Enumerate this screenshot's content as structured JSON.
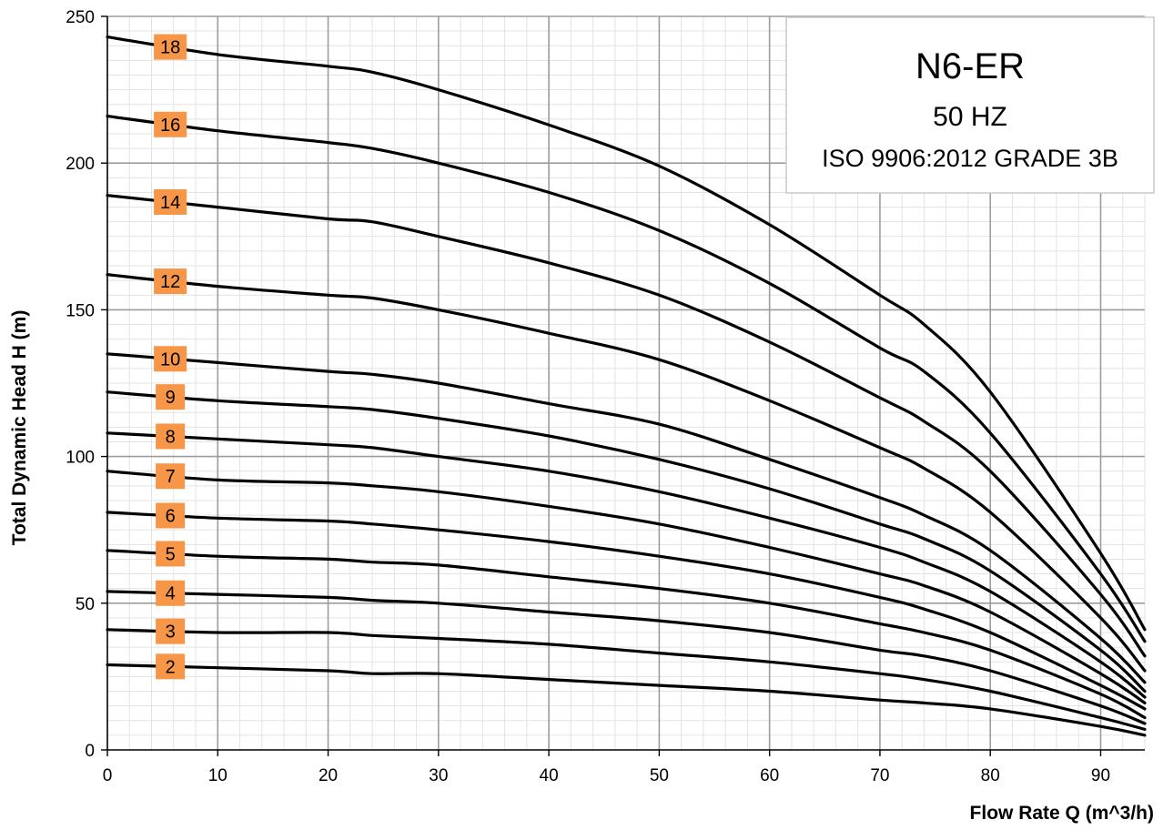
{
  "chart_data": {
    "type": "line",
    "title": "N6-ER",
    "subtitle_lines": [
      "50 HZ",
      "ISO 9906:2012 GRADE 3B"
    ],
    "xlabel": "Flow Rate Q (m^3/h)",
    "ylabel": "Total Dynamic Head  H (m)",
    "xlim": [
      0,
      94
    ],
    "ylim": [
      0,
      250
    ],
    "x_ticks": [
      "0",
      "10",
      "20",
      "30",
      "40",
      "50",
      "60",
      "70",
      "80",
      "90"
    ],
    "y_ticks": [
      "0",
      "50",
      "100",
      "150",
      "200",
      "250"
    ],
    "grid": true,
    "info_box_placement": "top-right",
    "label_color": "#F79646",
    "line_color": "#000000",
    "x": [
      0,
      10,
      20,
      24,
      30,
      40,
      50,
      60,
      70,
      74,
      80,
      90,
      94
    ],
    "series": [
      {
        "label": "18",
        "values": [
          243,
          237,
          233,
          231,
          225,
          213,
          199,
          179,
          155,
          145,
          122,
          67,
          41
        ]
      },
      {
        "label": "16",
        "values": [
          216,
          211,
          207,
          205,
          200,
          190,
          177,
          159,
          137,
          129,
          108,
          60,
          37
        ]
      },
      {
        "label": "14",
        "values": [
          189,
          185,
          181,
          180,
          175,
          166,
          155,
          139,
          120,
          112,
          95,
          53,
          32
        ]
      },
      {
        "label": "12",
        "values": [
          162,
          158,
          155,
          154,
          150,
          142,
          133,
          119,
          103,
          96,
          81,
          45,
          27
        ]
      },
      {
        "label": "10",
        "values": [
          135,
          132,
          129,
          128,
          125,
          118,
          111,
          99,
          86,
          80,
          68,
          38,
          23
        ]
      },
      {
        "label": "9",
        "values": [
          122,
          119,
          117,
          116,
          113,
          107,
          99,
          89,
          77,
          72,
          61,
          34,
          20
        ]
      },
      {
        "label": "8",
        "values": [
          108,
          106,
          104,
          103,
          100,
          95,
          88,
          79,
          69,
          64,
          54,
          30,
          18
        ]
      },
      {
        "label": "7",
        "values": [
          95,
          92,
          91,
          90,
          88,
          83,
          77,
          69,
          60,
          56,
          47,
          26,
          16
        ]
      },
      {
        "label": "6",
        "values": [
          81,
          79,
          78,
          77,
          75,
          71,
          66,
          60,
          52,
          48,
          40,
          22,
          14
        ]
      },
      {
        "label": "5",
        "values": [
          68,
          66,
          65,
          64,
          63,
          59,
          55,
          50,
          43,
          40,
          34,
          19,
          11
        ]
      },
      {
        "label": "4",
        "values": [
          54,
          53,
          52,
          51,
          50,
          47,
          44,
          40,
          34,
          32,
          27,
          15,
          9
        ]
      },
      {
        "label": "3",
        "values": [
          41,
          40,
          40,
          39,
          38,
          36,
          33,
          30,
          26,
          24,
          20,
          11,
          7
        ]
      },
      {
        "label": "2",
        "values": [
          29,
          28,
          27,
          26,
          26,
          24,
          22,
          20,
          17,
          16,
          14,
          8,
          5
        ]
      }
    ]
  }
}
